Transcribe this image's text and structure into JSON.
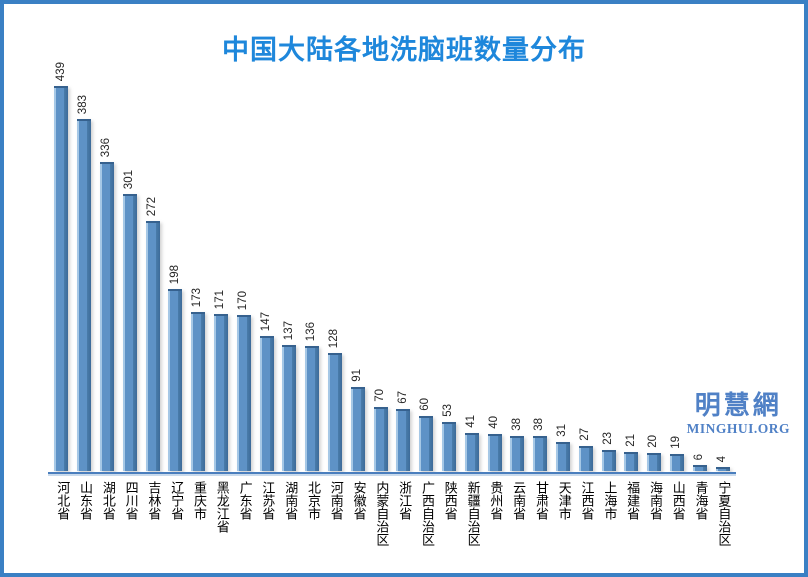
{
  "title": "中国大陆各地洗脑班数量分布",
  "watermark": {
    "cn": "明慧網",
    "en": "MINGHUI.ORG"
  },
  "colors": {
    "title_blue": "#1e87db",
    "frame_border": "#3a80c4",
    "bar_face": "#5e92c6",
    "bar_highlight": "#a6c8e6",
    "bar_shadow_side": "#3d6b99",
    "axis_line": "#4a7ebd",
    "watermark_blue": "#5081c6",
    "value_label": "#262626"
  },
  "chart_data": {
    "type": "bar",
    "title": "中国大陆各地洗脑班数量分布",
    "orientation": "vertical",
    "grid": false,
    "legend": false,
    "value_labels_position": "rotated 90° above bars",
    "category_labels_style": "vertical upright CJK below axis",
    "ylim": [
      0,
      450
    ],
    "categories": [
      "河北省",
      "山东省",
      "湖北省",
      "四川省",
      "吉林省",
      "辽宁省",
      "重庆市",
      "黑龙江省",
      "广东省",
      "江苏省",
      "湖南省",
      "北京市",
      "河南省",
      "安徽省",
      "内蒙自治区",
      "浙江省",
      "广西自治区",
      "陕西省",
      "新疆自治区",
      "贵州省",
      "云南省",
      "甘肃省",
      "天津市",
      "江西省",
      "上海市",
      "福建省",
      "海南省",
      "山西省",
      "青海省",
      "宁夏自治区"
    ],
    "values": [
      439,
      383,
      336,
      301,
      272,
      198,
      173,
      171,
      170,
      147,
      137,
      136,
      128,
      91,
      70,
      67,
      60,
      53,
      41,
      40,
      38,
      38,
      31,
      27,
      23,
      21,
      20,
      19,
      6,
      4
    ]
  }
}
